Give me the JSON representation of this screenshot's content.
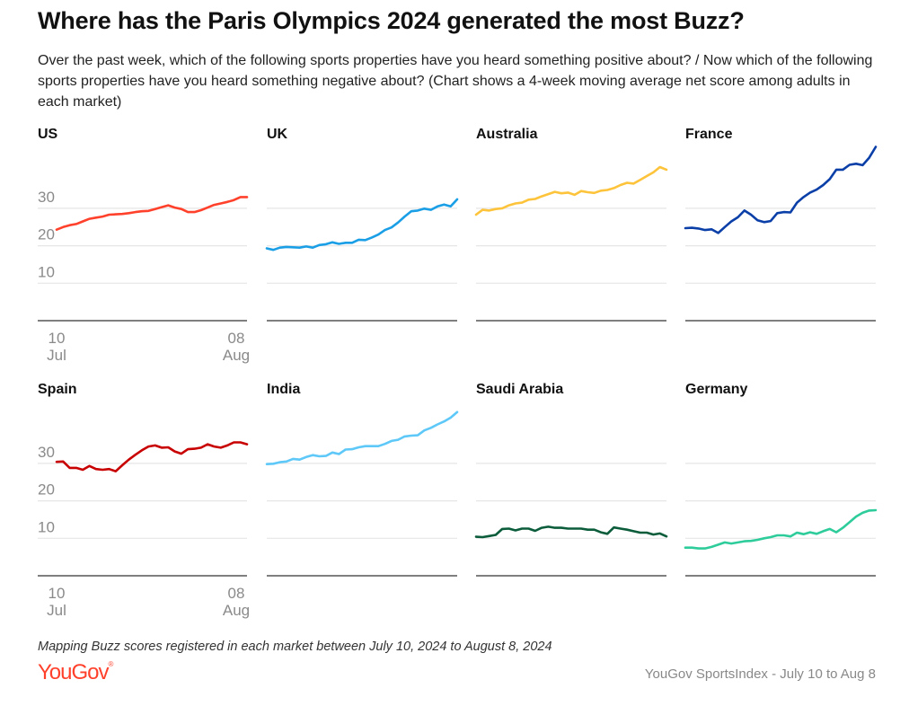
{
  "title": "Where has the Paris Olympics 2024 generated the most Buzz?",
  "subtitle": "Over the past week, which of the following sports properties have you heard something positive about? / Now which of the following sports properties have you heard something negative about? (Chart shows a 4-week moving average net score among adults in each market)",
  "footer": {
    "note": "Mapping Buzz scores registered in each market between July 10, 2024 to August 8, 2024",
    "logo": "YouGov",
    "source": "YouGov SportsIndex - July 10 to Aug 8"
  },
  "chart_data": {
    "type": "line",
    "layout": "small-multiples 4x2",
    "x_start": "2024-07-10",
    "x_end": "2024-08-08",
    "x_ticks": [
      {
        "day": "10",
        "month": "Jul"
      },
      {
        "day": "08",
        "month": "Aug"
      }
    ],
    "y_ticks": [
      10,
      20,
      30
    ],
    "ylim": [
      0,
      50
    ],
    "grid": true,
    "panels": [
      {
        "name": "US",
        "color": "#ff412c",
        "values": [
          24.3,
          25,
          25.5,
          25.8,
          26.5,
          27.2,
          27.5,
          27.8,
          28.3,
          28.4,
          28.5,
          28.7,
          29,
          29.2,
          29.3,
          29.8,
          30.3,
          30.8,
          30.2,
          29.8,
          29,
          29,
          29.5,
          30.2,
          30.9,
          31.3,
          31.7,
          32.2,
          33,
          33
        ]
      },
      {
        "name": "UK",
        "color": "#1a9fe6",
        "values": [
          19.3,
          18.9,
          19.5,
          19.7,
          19.6,
          19.5,
          19.8,
          19.5,
          20.2,
          20.4,
          20.9,
          20.5,
          20.8,
          20.8,
          21.6,
          21.5,
          22.2,
          23,
          24.2,
          24.9,
          26.2,
          27.8,
          29.2,
          29.4,
          29.9,
          29.6,
          30.5,
          31,
          30.5,
          32.4
        ]
      },
      {
        "name": "Australia",
        "color": "#fdc43b",
        "values": [
          28.3,
          29.6,
          29.4,
          29.8,
          30,
          30.8,
          31.3,
          31.5,
          32.3,
          32.5,
          33.2,
          33.8,
          34.4,
          34,
          34.2,
          33.6,
          34.6,
          34.3,
          34.1,
          34.7,
          34.9,
          35.4,
          36.2,
          36.8,
          36.6,
          37.6,
          38.6,
          39.6,
          41,
          40.3
        ]
      },
      {
        "name": "France",
        "color": "#0b3fa8",
        "values": [
          24.7,
          24.8,
          24.6,
          24.2,
          24.4,
          23.4,
          25,
          26.5,
          27.6,
          29.4,
          28.3,
          26.8,
          26.3,
          26.6,
          28.7,
          29,
          28.9,
          31.5,
          33,
          34.2,
          35,
          36.2,
          37.8,
          40.3,
          40.3,
          41.6,
          41.9,
          41.5,
          43.5,
          46.4
        ]
      },
      {
        "name": "Spain",
        "color": "#c80000",
        "values": [
          30.4,
          30.5,
          28.8,
          28.8,
          28.3,
          29.3,
          28.5,
          28.3,
          28.5,
          27.9,
          29.5,
          31,
          32.3,
          33.5,
          34.5,
          34.8,
          34.2,
          34.3,
          33.2,
          32.6,
          33.8,
          33.9,
          34.2,
          35.1,
          34.5,
          34.2,
          34.8,
          35.6,
          35.6,
          35.1
        ]
      },
      {
        "name": "India",
        "color": "#5ec8f8",
        "values": [
          29.8,
          29.9,
          30.3,
          30.5,
          31.2,
          31,
          31.7,
          32.2,
          31.9,
          32,
          32.9,
          32.5,
          33.7,
          33.8,
          34.3,
          34.6,
          34.6,
          34.6,
          35.2,
          36,
          36.3,
          37.2,
          37.4,
          37.5,
          38.8,
          39.5,
          40.4,
          41.2,
          42.2,
          43.7
        ]
      },
      {
        "name": "Saudi Arabia",
        "color": "#0a5c3a",
        "values": [
          10.4,
          10.3,
          10.6,
          10.9,
          12.5,
          12.6,
          12.1,
          12.6,
          12.6,
          12,
          12.8,
          13.1,
          12.8,
          12.8,
          12.6,
          12.6,
          12.6,
          12.3,
          12.3,
          11.6,
          11.2,
          12.9,
          12.6,
          12.3,
          11.9,
          11.5,
          11.5,
          11,
          11.3,
          10.5
        ]
      },
      {
        "name": "Germany",
        "color": "#2ecc9a",
        "values": [
          7.5,
          7.5,
          7.3,
          7.3,
          7.7,
          8.3,
          8.9,
          8.6,
          8.9,
          9.2,
          9.3,
          9.6,
          10,
          10.3,
          10.8,
          10.8,
          10.5,
          11.5,
          11.1,
          11.6,
          11.2,
          11.9,
          12.5,
          11.6,
          12.8,
          14.3,
          15.8,
          16.8,
          17.4,
          17.5
        ]
      }
    ]
  }
}
